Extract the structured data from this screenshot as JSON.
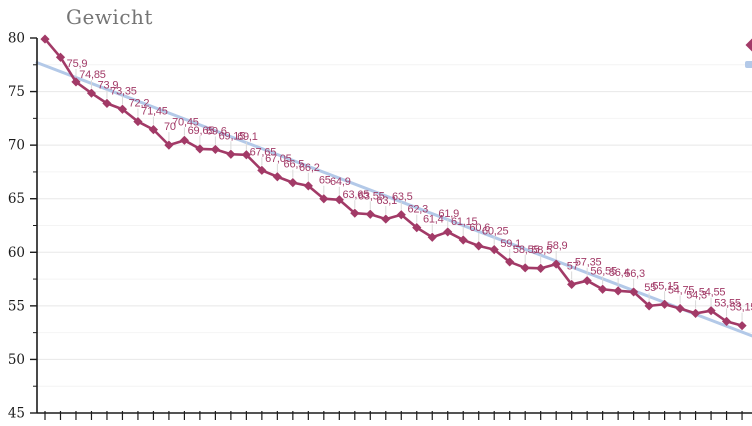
{
  "title": "Gewicht",
  "colors": {
    "series": "#a23a67",
    "trend": "#b3c9e8",
    "grid_major": "#e8e8e8",
    "grid_minor": "#f4f4f4",
    "leader": "#d9d9d9",
    "axis": "#1c1c1c",
    "title_text": "#757575",
    "background": "#ffffff"
  },
  "y_axis": {
    "min": 45,
    "max": 80,
    "major_step": 5,
    "minor_step": 2.5,
    "tick_labels": [
      "80",
      "75",
      "70",
      "65",
      "60",
      "55",
      "50",
      "45"
    ]
  },
  "x_axis": {
    "tick_count": 46,
    "labels_visible": false
  },
  "legend": {
    "clipped_at_right_edge": true,
    "swatches": [
      {
        "name": "series-marker",
        "color": "#a23a67"
      },
      {
        "name": "trend-line",
        "color": "#b3c9e8"
      }
    ]
  },
  "chart_data": {
    "type": "line",
    "title": "Gewicht",
    "ylim": [
      45,
      80
    ],
    "grid": true,
    "point_count": 46,
    "decimal_separator": ",",
    "series": [
      {
        "role": "data",
        "color": "#a23a67",
        "marker": "diamond",
        "values": [
          79.9,
          78.2,
          75.9,
          74.85,
          73.9,
          73.35,
          72.2,
          71.45,
          70,
          70.45,
          69.65,
          69.6,
          69.15,
          69.1,
          67.65,
          67.05,
          66.5,
          66.2,
          65,
          64.9,
          63.65,
          63.55,
          63.1,
          63.5,
          62.3,
          61.4,
          61.9,
          61.15,
          60.6,
          60.25,
          59.1,
          58.55,
          58.5,
          58.9,
          57,
          57.35,
          56.55,
          56.4,
          56.3,
          55,
          55.15,
          54.75,
          54.3,
          54.55,
          53.55,
          53.15
        ],
        "labels": [
          null,
          null,
          "75,9",
          "74,85",
          "73,9",
          "73,35",
          "72,2",
          "71,45",
          "70",
          "70,45",
          "69,65",
          "69,6",
          "69,15",
          "69,1",
          "67,65",
          "67,05",
          "66,5",
          "66,2",
          "65",
          "64,9",
          "63,65",
          "63,55",
          "63,1",
          "63,5",
          "62,3",
          "61,4",
          "61,9",
          "61,15",
          "60,6",
          "60,25",
          "59,1",
          "58,55",
          "58,5",
          "58,9",
          "57",
          "57,35",
          "56,55",
          "56,4",
          "56,3",
          "55",
          "55,15",
          "54,75",
          "54,3",
          "54,55",
          "53,55",
          "53,15"
        ]
      },
      {
        "role": "trend",
        "color": "#b3c9e8",
        "start_value": 77.7,
        "end_value": 52.2
      }
    ]
  }
}
